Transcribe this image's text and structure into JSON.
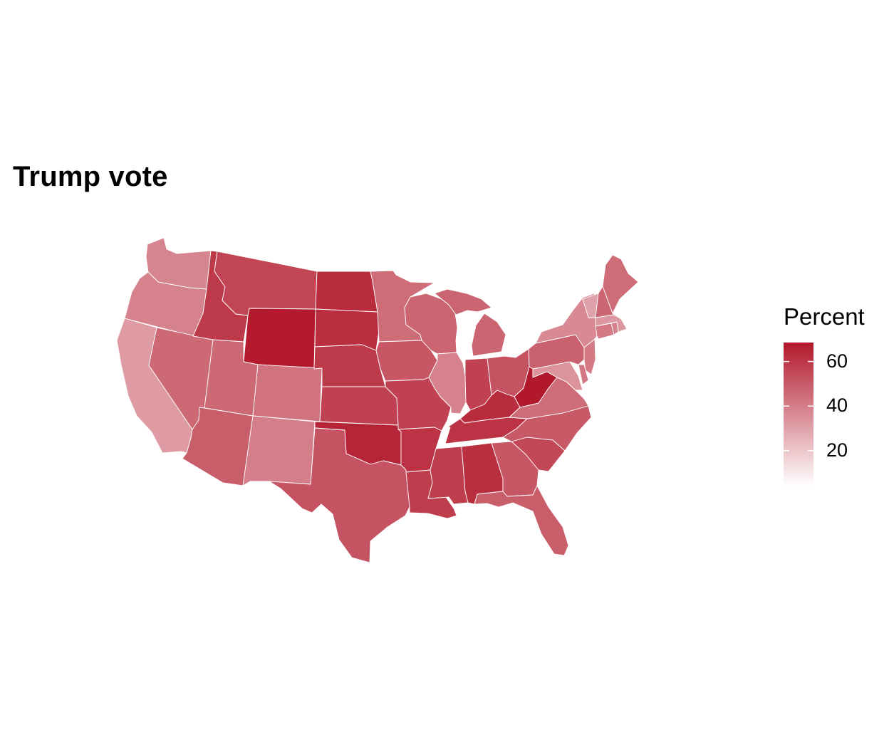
{
  "title": "Trump vote",
  "legend": {
    "title": "Percent",
    "ticks": [
      {
        "label": "60",
        "value": 60
      },
      {
        "label": "40",
        "value": 40
      },
      {
        "label": "20",
        "value": 20
      }
    ],
    "min_value": 4,
    "max_value": 68.5,
    "color_low": "#ffffff",
    "color_high": "#b2182b"
  },
  "states": [
    {
      "id": "WA",
      "value": 38
    },
    {
      "id": "OR",
      "value": 39
    },
    {
      "id": "CA",
      "value": 32
    },
    {
      "id": "NV",
      "value": 46
    },
    {
      "id": "ID",
      "value": 59
    },
    {
      "id": "MT",
      "value": 56
    },
    {
      "id": "WY",
      "value": 68
    },
    {
      "id": "UT",
      "value": 46
    },
    {
      "id": "CO",
      "value": 43
    },
    {
      "id": "AZ",
      "value": 49
    },
    {
      "id": "NM",
      "value": 40
    },
    {
      "id": "ND",
      "value": 63
    },
    {
      "id": "SD",
      "value": 62
    },
    {
      "id": "NE",
      "value": 59
    },
    {
      "id": "KS",
      "value": 57
    },
    {
      "id": "OK",
      "value": 65
    },
    {
      "id": "TX",
      "value": 52
    },
    {
      "id": "MN",
      "value": 45
    },
    {
      "id": "IA",
      "value": 51
    },
    {
      "id": "MO",
      "value": 57
    },
    {
      "id": "AR",
      "value": 61
    },
    {
      "id": "LA",
      "value": 58
    },
    {
      "id": "WI",
      "value": 47
    },
    {
      "id": "IL",
      "value": 39
    },
    {
      "id": "MI",
      "value": 47
    },
    {
      "id": "IN",
      "value": 57
    },
    {
      "id": "OH",
      "value": 52
    },
    {
      "id": "KY",
      "value": 63
    },
    {
      "id": "TN",
      "value": 61
    },
    {
      "id": "MS",
      "value": 58
    },
    {
      "id": "AL",
      "value": 62
    },
    {
      "id": "GA",
      "value": 51
    },
    {
      "id": "FL",
      "value": 49
    },
    {
      "id": "SC",
      "value": 55
    },
    {
      "id": "NC",
      "value": 50
    },
    {
      "id": "VA",
      "value": 45
    },
    {
      "id": "WV",
      "value": 69
    },
    {
      "id": "PA",
      "value": 48
    },
    {
      "id": "NY",
      "value": 37
    },
    {
      "id": "VT",
      "value": 30
    },
    {
      "id": "NH",
      "value": 47
    },
    {
      "id": "ME",
      "value": 45
    },
    {
      "id": "MA",
      "value": 33
    },
    {
      "id": "CT",
      "value": 41
    },
    {
      "id": "RI",
      "value": 39
    },
    {
      "id": "NJ",
      "value": 41
    },
    {
      "id": "DE",
      "value": 42
    },
    {
      "id": "MD",
      "value": 34
    }
  ]
}
